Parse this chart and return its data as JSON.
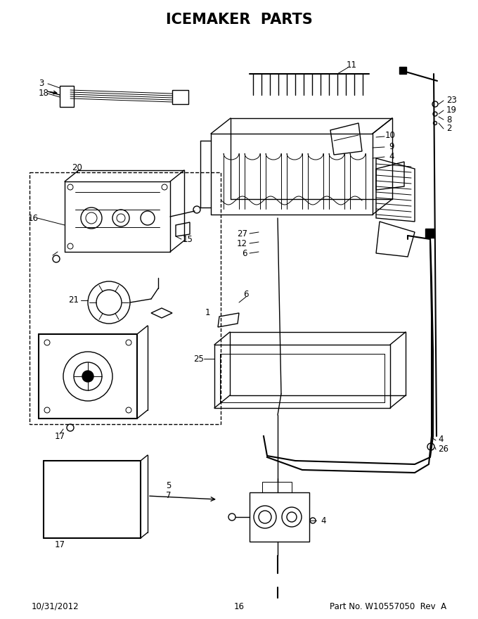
{
  "title": "ICEMAKER  PARTS",
  "footer_left": "10/31/2012",
  "footer_center": "16",
  "footer_right": "Part No. W10557050  Rev  A",
  "bg_color": "#ffffff",
  "line_color": "#000000",
  "title_fontsize": 15,
  "footer_fontsize": 8.5,
  "label_fontsize": 8.5,
  "fig_width": 6.8,
  "fig_height": 8.8,
  "dpi": 100
}
